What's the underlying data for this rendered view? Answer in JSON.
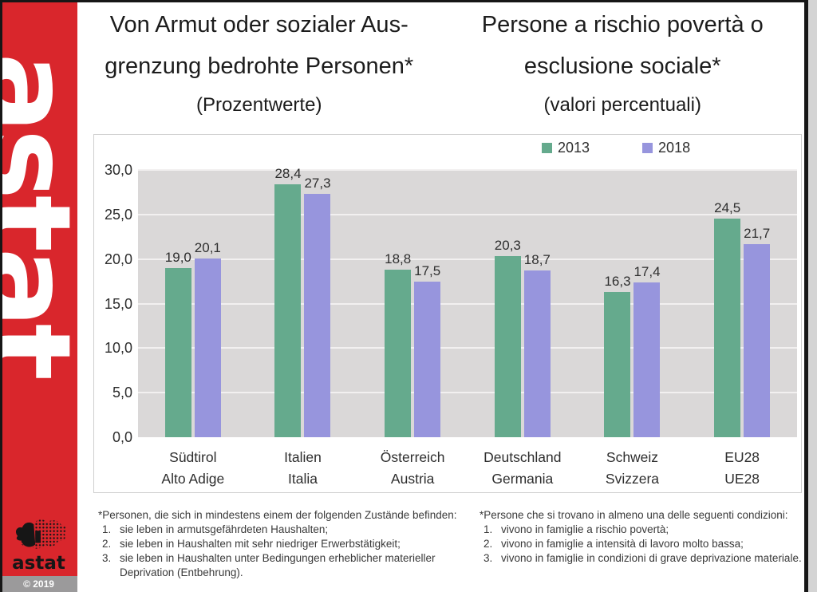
{
  "sidebar": {
    "brand_vertical": "astat",
    "logo_wordmark": "astat",
    "copyright": "© 2019",
    "brand_color": "#d9262c"
  },
  "titles": {
    "de": {
      "line1": "Von Armut oder sozialer Aus-",
      "line2": "grenzung bedrohte Personen*",
      "subtitle": "(Prozentwerte)"
    },
    "it": {
      "line1": "Persone a rischio povertà o",
      "line2": "esclusione sociale*",
      "subtitle": "(valori percentuali)"
    }
  },
  "chart_data": {
    "type": "bar",
    "title_de": "Von Armut oder sozialer Ausgrenzung bedrohte Personen* (Prozentwerte)",
    "title_it": "Persone a rischio povertà o esclusione sociale* (valori percentuali)",
    "categories": [
      {
        "de": "Südtirol",
        "it": "Alto Adige"
      },
      {
        "de": "Italien",
        "it": "Italia"
      },
      {
        "de": "Österreich",
        "it": "Austria"
      },
      {
        "de": "Deutschland",
        "it": "Germania"
      },
      {
        "de": "Schweiz",
        "it": "Svizzera"
      },
      {
        "de": "EU28",
        "it": "UE28"
      }
    ],
    "series": [
      {
        "name": "2013",
        "color": "#65aa8d",
        "values": [
          19.0,
          28.4,
          18.8,
          20.3,
          16.3,
          24.5
        ]
      },
      {
        "name": "2018",
        "color": "#9795dd",
        "values": [
          20.1,
          27.3,
          17.5,
          18.7,
          17.4,
          21.7
        ]
      }
    ],
    "ylim": [
      0,
      30
    ],
    "ytick_step": 5,
    "ytick_labels": [
      "0,0",
      "5,0",
      "10,0",
      "15,0",
      "20,0",
      "25,0",
      "30,0"
    ],
    "decimal_separator": ",",
    "grid": true,
    "legend_position": "top",
    "plot_background": "#dad8d8",
    "gridline_color": "#f2f0f0"
  },
  "footnotes": {
    "de": {
      "intro": "*Personen, die sich in mindestens einem der folgenden Zustände befinden:",
      "items": [
        {
          "num": "1.",
          "text": "sie leben in armutsgefährdeten Haushalten;"
        },
        {
          "num": "2.",
          "text": "sie leben in Haushalten mit sehr niedriger Erwerbstätigkeit;"
        },
        {
          "num": "3.",
          "text": "sie leben in Haushalten unter Bedingungen erheblicher materieller Deprivation (Entbehrung)."
        }
      ]
    },
    "it": {
      "intro": "*Persone che si trovano in almeno una delle seguenti condizioni:",
      "items": [
        {
          "num": "1.",
          "text": "vivono in famiglie a rischio povertà;"
        },
        {
          "num": "2.",
          "text": "vivono in famiglie a intensità di lavoro molto bassa;"
        },
        {
          "num": "3.",
          "text": "vivono in famiglie in condizioni di grave deprivazione materiale."
        }
      ]
    }
  }
}
